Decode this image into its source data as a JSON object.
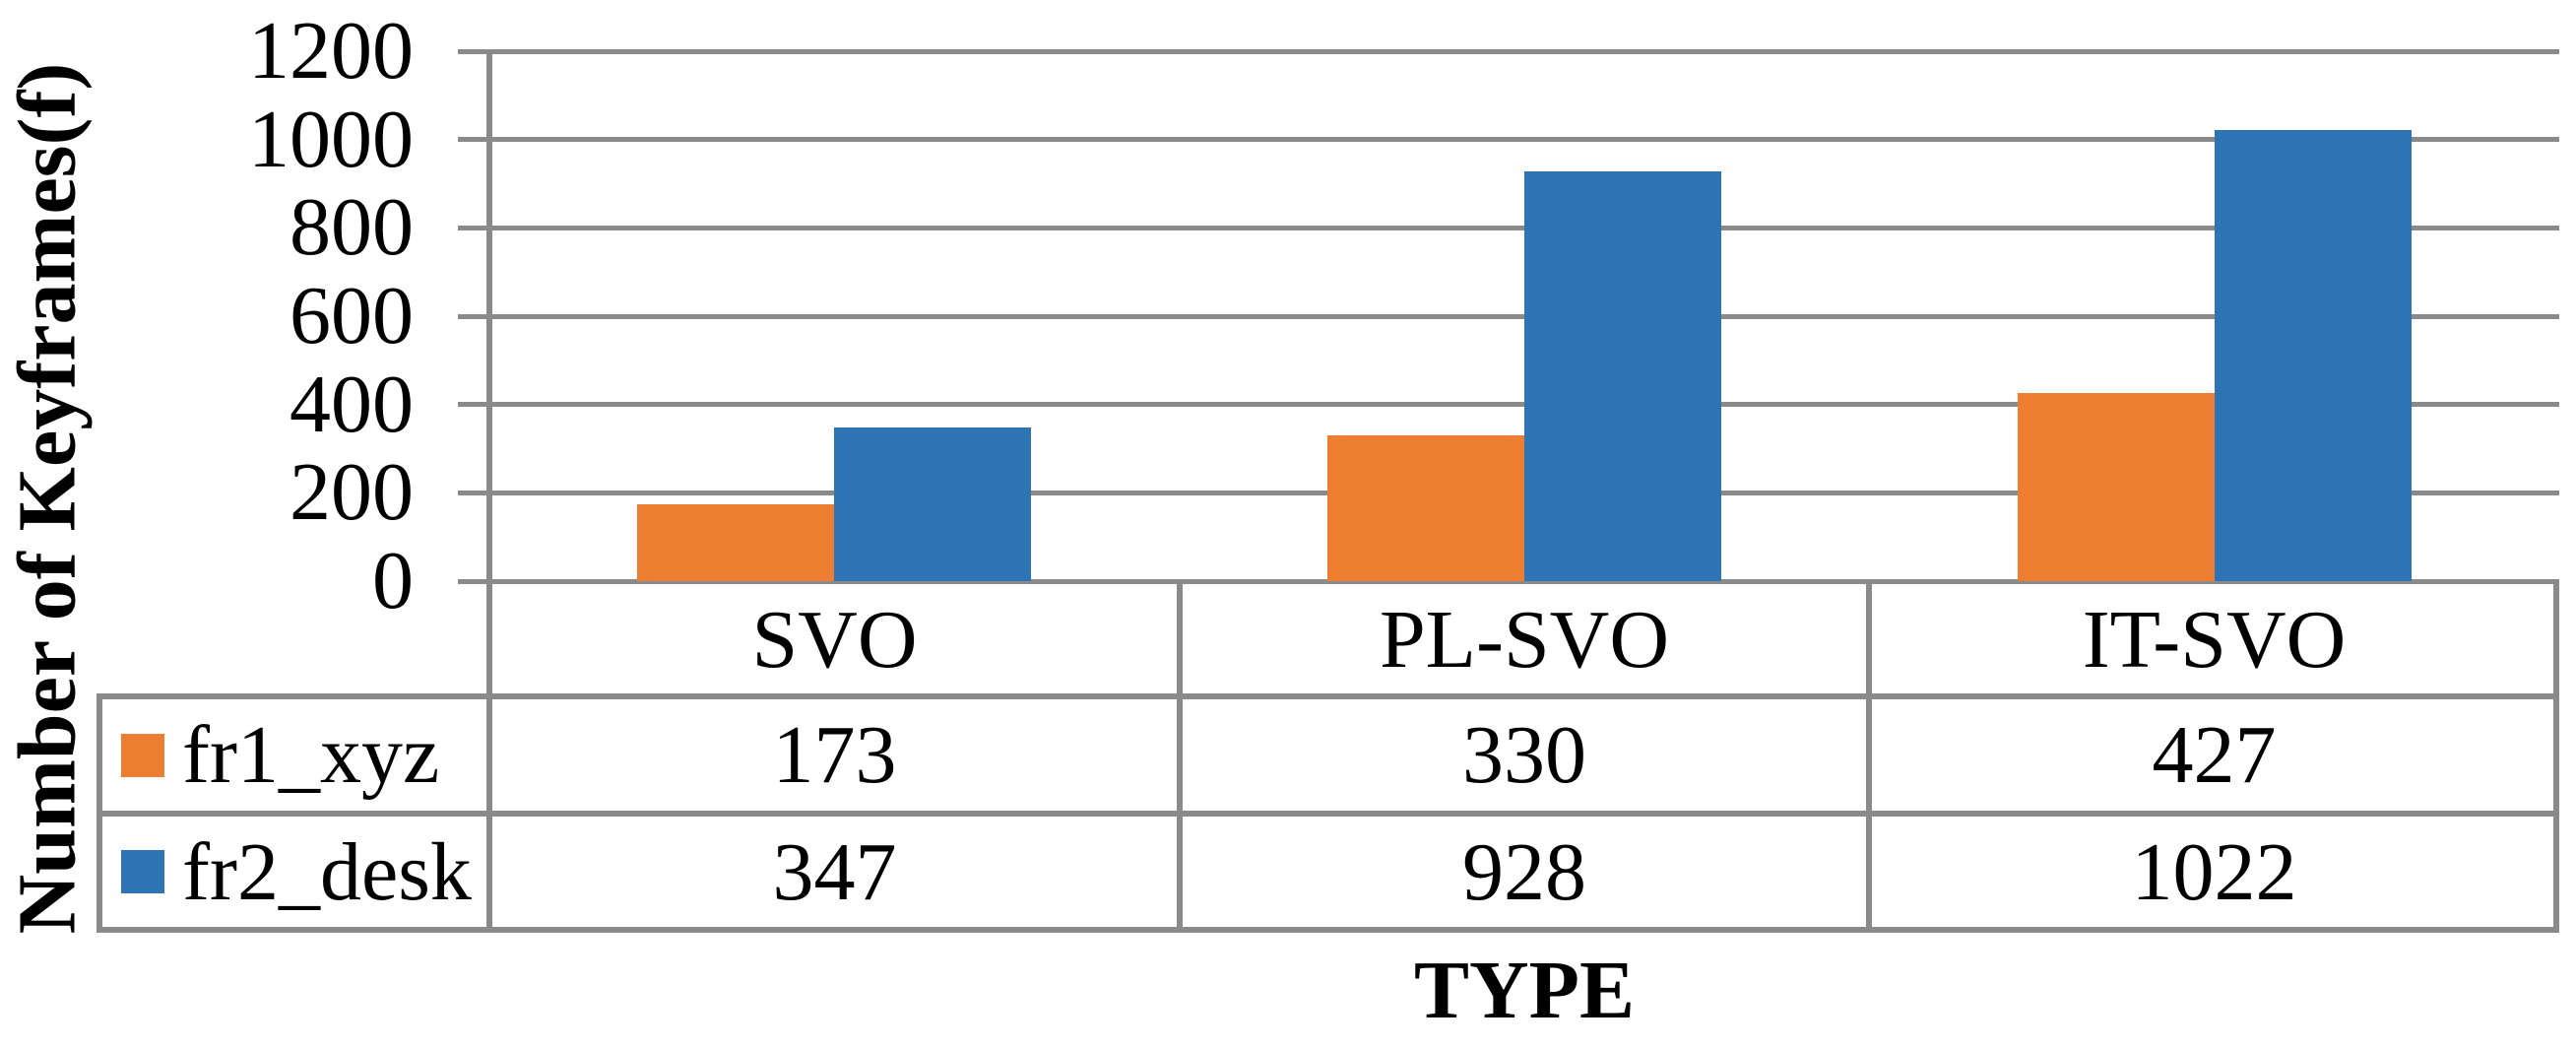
{
  "chart_data": {
    "type": "bar",
    "title": "",
    "categories": [
      "SVO",
      "PL-SVO",
      "IT-SVO"
    ],
    "series": [
      {
        "name": "fr1_xyz",
        "color": "#ED7D31",
        "values": [
          173,
          330,
          427
        ]
      },
      {
        "name": "fr2_desk",
        "color": "#2E74B5",
        "values": [
          347,
          928,
          1022
        ]
      }
    ],
    "xlabel": "TYPE",
    "ylabel": "Number of Keyframes(f)",
    "ylim": [
      0,
      1200
    ],
    "yticks": [
      1200,
      1000,
      800,
      600,
      400,
      200,
      0
    ],
    "grid": true,
    "gridline_color": "#8a8a8a",
    "legend_position": "data-table-left-column",
    "layout": "column-chart-with-data-table"
  },
  "axis": {
    "y_title": "Number of Keyframes(f)",
    "x_title": "TYPE"
  },
  "table": {
    "header": [
      "SVO",
      "PL-SVO",
      "IT-SVO"
    ],
    "rows": [
      {
        "label": "fr1_xyz",
        "swatch_color": "#ED7D31",
        "values": [
          "173",
          "330",
          "427"
        ]
      },
      {
        "label": "fr2_desk",
        "swatch_color": "#2E74B5",
        "values": [
          "347",
          "928",
          "1022"
        ]
      }
    ]
  },
  "colors": {
    "series_1": "#ED7D31",
    "series_2": "#2E74B5",
    "grid_and_borders": "#8a8a8a",
    "text": "#000000",
    "background": "#ffffff"
  }
}
